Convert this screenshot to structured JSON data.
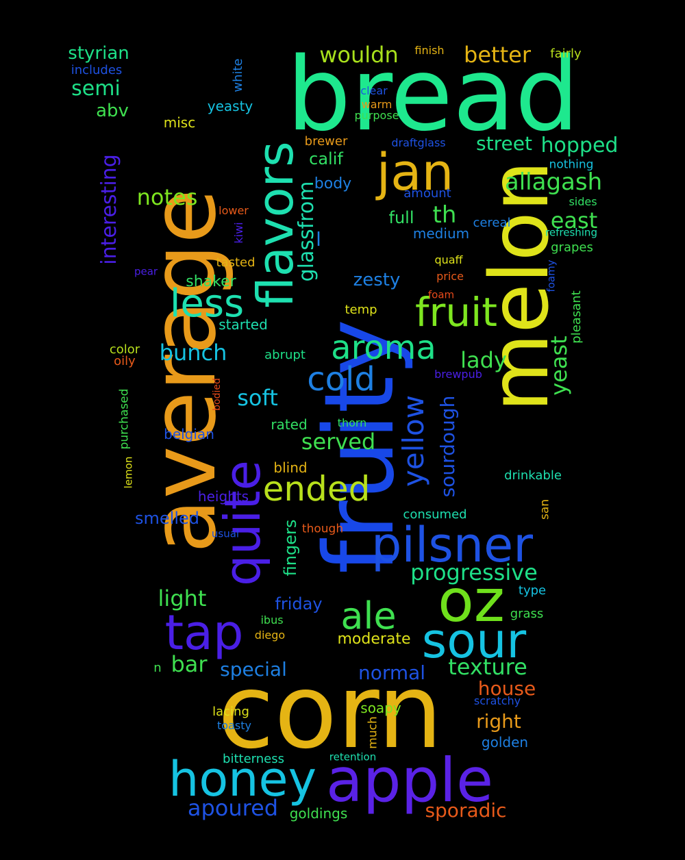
{
  "words": [
    {
      "text": "bread",
      "color": "#1ee88e"
    },
    {
      "text": "average",
      "color": "#e89a1a"
    },
    {
      "text": "fruity",
      "color": "#1848e8"
    },
    {
      "text": "melon",
      "color": "#dfe31a"
    },
    {
      "text": "corn",
      "color": "#e5b414"
    },
    {
      "text": "apple",
      "color": "#5a22e6"
    },
    {
      "text": "honey",
      "color": "#16c3e2"
    },
    {
      "text": "oz",
      "color": "#6fe01c"
    },
    {
      "text": "flavors",
      "color": "#1ee0b0"
    },
    {
      "text": "quite",
      "color": "#4a1fe6"
    },
    {
      "text": "jan",
      "color": "#e5b414"
    },
    {
      "text": "pilsner",
      "color": "#1e52e3"
    },
    {
      "text": "sour",
      "color": "#16c3e2"
    },
    {
      "text": "tap",
      "color": "#4a1fe6"
    },
    {
      "text": "less",
      "color": "#1ee0b0"
    },
    {
      "text": "fruit",
      "color": "#7ee620"
    },
    {
      "text": "aroma",
      "color": "#1ee088"
    },
    {
      "text": "ale",
      "color": "#3fe050"
    },
    {
      "text": "ended",
      "color": "#b8e01c"
    },
    {
      "text": "cold",
      "color": "#1e80e3"
    },
    {
      "text": "yellow",
      "color": "#1e52e3"
    },
    {
      "text": "progressive",
      "color": "#1ee088"
    },
    {
      "text": "texture",
      "color": "#32e064"
    },
    {
      "text": "glassfrom",
      "color": "#1ee0b0"
    },
    {
      "text": "allagash",
      "color": "#3fe050"
    },
    {
      "text": "wouldn",
      "color": "#a8e01c"
    },
    {
      "text": "better",
      "color": "#e5b414"
    },
    {
      "text": "hopped",
      "color": "#1ee088"
    },
    {
      "text": "street",
      "color": "#1ee088"
    },
    {
      "text": "east",
      "color": "#3fe050"
    },
    {
      "text": "lady",
      "color": "#3fe050"
    },
    {
      "text": "yeast",
      "color": "#3fe050"
    },
    {
      "text": "sourdough",
      "color": "#1e52e3"
    },
    {
      "text": "notes",
      "color": "#7ee620"
    },
    {
      "text": "interesting",
      "color": "#4a1fe6"
    },
    {
      "text": "semi",
      "color": "#1ee088"
    },
    {
      "text": "styrian",
      "color": "#1ee088"
    },
    {
      "text": "abv",
      "color": "#3fe050"
    },
    {
      "text": "bunch",
      "color": "#16c3e2"
    },
    {
      "text": "soft",
      "color": "#16c3e2"
    },
    {
      "text": "served",
      "color": "#3fe050"
    },
    {
      "text": "light",
      "color": "#3fe050"
    },
    {
      "text": "bar",
      "color": "#3fe050"
    },
    {
      "text": "special",
      "color": "#1e80e3"
    },
    {
      "text": "normal",
      "color": "#1e52e3"
    },
    {
      "text": "house",
      "color": "#e85a1a"
    },
    {
      "text": "right",
      "color": "#e89a1a"
    },
    {
      "text": "apoured",
      "color": "#1e52e3"
    },
    {
      "text": "sporadic",
      "color": "#e85a1a"
    },
    {
      "text": "zesty",
      "color": "#1e80e3"
    },
    {
      "text": "th",
      "color": "#3fe050"
    },
    {
      "text": "full",
      "color": "#32e064"
    },
    {
      "text": "medium",
      "color": "#1e80e3"
    },
    {
      "text": "shaker",
      "color": "#32e064"
    },
    {
      "text": "smelled",
      "color": "#1e52e3"
    },
    {
      "text": "friday",
      "color": "#1e52e3"
    },
    {
      "text": "moderate",
      "color": "#dfe31a"
    },
    {
      "text": "fingers",
      "color": "#1ee088"
    },
    {
      "text": "calif",
      "color": "#32e064"
    },
    {
      "text": "body",
      "color": "#1e80e3"
    },
    {
      "text": "misc",
      "color": "#dfe31a"
    },
    {
      "text": "yeasty",
      "color": "#16c3e2"
    },
    {
      "text": "white",
      "color": "#1e80e3"
    },
    {
      "text": "includes",
      "color": "#1e52e3"
    },
    {
      "text": "finish",
      "color": "#e5b414"
    },
    {
      "text": "fairly",
      "color": "#b8e01c"
    },
    {
      "text": "clear",
      "color": "#1e52e3"
    },
    {
      "text": "warm",
      "color": "#e89a1a"
    },
    {
      "text": "purpose",
      "color": "#3fe050"
    },
    {
      "text": "brewer",
      "color": "#e89a1a"
    },
    {
      "text": "draftglass",
      "color": "#1e52e3"
    },
    {
      "text": "nothing",
      "color": "#16c3e2"
    },
    {
      "text": "amount",
      "color": "#1e52e3"
    },
    {
      "text": "sides",
      "color": "#32e064"
    },
    {
      "text": "lower",
      "color": "#e85a1a"
    },
    {
      "text": "kiwi",
      "color": "#4a1fe6"
    },
    {
      "text": "cereal",
      "color": "#1e80e3"
    },
    {
      "text": "refreshing",
      "color": "#1ee0b0"
    },
    {
      "text": "grapes",
      "color": "#3fe050"
    },
    {
      "text": "l",
      "color": "#1e80e3"
    },
    {
      "text": "tasted",
      "color": "#e5b414"
    },
    {
      "text": "pear",
      "color": "#4a1fe6"
    },
    {
      "text": "quaff",
      "color": "#dfe31a"
    },
    {
      "text": "price",
      "color": "#e85a1a"
    },
    {
      "text": "foamy",
      "color": "#1e52e3"
    },
    {
      "text": "foam",
      "color": "#e84a1a"
    },
    {
      "text": "pleasant",
      "color": "#3fe050"
    },
    {
      "text": "temp",
      "color": "#dfe31a"
    },
    {
      "text": "started",
      "color": "#1ee0b0"
    },
    {
      "text": "color",
      "color": "#b8e01c"
    },
    {
      "text": "oily",
      "color": "#e85a1a"
    },
    {
      "text": "abrupt",
      "color": "#1ee088"
    },
    {
      "text": "brewpub",
      "color": "#4a1fe6"
    },
    {
      "text": "bodied",
      "color": "#e84a1a"
    },
    {
      "text": "purchased",
      "color": "#3fe050"
    },
    {
      "text": "rated",
      "color": "#32e064"
    },
    {
      "text": "thorn",
      "color": "#32e064"
    },
    {
      "text": "belgian",
      "color": "#1e52e3"
    },
    {
      "text": "lemon",
      "color": "#dfe31a"
    },
    {
      "text": "blind",
      "color": "#e5b414"
    },
    {
      "text": "drinkable",
      "color": "#1ee0b0"
    },
    {
      "text": "heights",
      "color": "#4a1fe6"
    },
    {
      "text": "san",
      "color": "#e5b414"
    },
    {
      "text": "consumed",
      "color": "#1ee0b0"
    },
    {
      "text": "usual",
      "color": "#1e52e3"
    },
    {
      "text": "though",
      "color": "#e85a1a"
    },
    {
      "text": "type",
      "color": "#16c3e2"
    },
    {
      "text": "ibus",
      "color": "#3fe050"
    },
    {
      "text": "grass",
      "color": "#3fe050"
    },
    {
      "text": "diego",
      "color": "#e5b414"
    },
    {
      "text": "n",
      "color": "#3fe050"
    },
    {
      "text": "scratchy",
      "color": "#1e52e3"
    },
    {
      "text": "lacing",
      "color": "#dfe31a"
    },
    {
      "text": "soapy",
      "color": "#7ee620"
    },
    {
      "text": "toasty",
      "color": "#1e80e3"
    },
    {
      "text": "much",
      "color": "#e5b414"
    },
    {
      "text": "golden",
      "color": "#1e80e3"
    },
    {
      "text": "bitterness",
      "color": "#1ee0b0"
    },
    {
      "text": "retention",
      "color": "#1ee0b0"
    },
    {
      "text": "goldings",
      "color": "#3fe050"
    }
  ]
}
